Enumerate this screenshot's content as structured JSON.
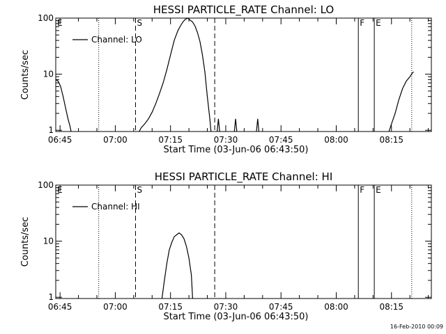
{
  "chart_data": [
    {
      "type": "line",
      "title": "HESSI PARTICLE_RATE Channel: LO",
      "ylabel": "Counts/sec",
      "xlabel": "Start Time (03-Jun-06 06:43:50)",
      "yscale": "log",
      "ylim": [
        0.95,
        100
      ],
      "xlim": [
        "06:43:50",
        "08:25:50"
      ],
      "x_tick_labels": [
        "06:45",
        "07:00",
        "07:15",
        "07:30",
        "07:45",
        "08:00",
        "08:15"
      ],
      "y_tick_labels": [
        "1",
        "10",
        "100"
      ],
      "legend": {
        "entries": [
          "Channel: LO"
        ],
        "placement": "upper-left"
      },
      "series": [
        {
          "name": "Channel: LO",
          "points": [
            [
              "06:43:50",
              8.0
            ],
            [
              "06:44:30",
              7.5
            ],
            [
              "06:45:10",
              6.0
            ],
            [
              "06:45:50",
              4.0
            ],
            [
              "06:46:30",
              2.5
            ],
            [
              "06:47:10",
              1.6
            ],
            [
              "06:47:40",
              1.2
            ],
            [
              "06:48:00",
              0.95
            ],
            null,
            [
              "07:06:30",
              0.95
            ],
            [
              "07:07:00",
              1.1
            ],
            [
              "07:08:00",
              1.3
            ],
            [
              "07:09:00",
              1.6
            ],
            [
              "07:10:00",
              2.1
            ],
            [
              "07:11:00",
              3.0
            ],
            [
              "07:12:00",
              4.5
            ],
            [
              "07:13:00",
              7.0
            ],
            [
              "07:14:00",
              12.0
            ],
            [
              "07:15:00",
              22.0
            ],
            [
              "07:16:00",
              40.0
            ],
            [
              "07:17:00",
              60.0
            ],
            [
              "07:17:40",
              72.0
            ],
            [
              "07:18:20",
              85.0
            ],
            [
              "07:19:00",
              95.0
            ],
            [
              "07:19:40",
              100.0
            ],
            [
              "07:20:20",
              92.0
            ],
            [
              "07:21:00",
              85.0
            ],
            [
              "07:21:40",
              72.0
            ],
            [
              "07:22:20",
              55.0
            ],
            [
              "07:23:00",
              38.0
            ],
            [
              "07:23:40",
              22.0
            ],
            [
              "07:24:20",
              11.0
            ],
            [
              "07:25:00",
              4.0
            ],
            [
              "07:25:40",
              1.6
            ],
            [
              "07:26:00",
              0.95
            ],
            null,
            [
              "07:27:40",
              0.95
            ],
            [
              "07:28:00",
              1.6
            ],
            [
              "07:28:20",
              0.95
            ],
            null,
            [
              "07:32:20",
              0.95
            ],
            [
              "07:32:40",
              1.6
            ],
            [
              "07:33:00",
              0.95
            ],
            null,
            [
              "07:38:20",
              0.95
            ],
            [
              "07:38:40",
              1.6
            ],
            [
              "07:39:00",
              0.95
            ],
            null,
            [
              "08:14:20",
              0.95
            ],
            [
              "08:15:00",
              1.3
            ],
            [
              "08:16:00",
              2.0
            ],
            [
              "08:17:00",
              3.5
            ],
            [
              "08:18:00",
              5.5
            ],
            [
              "08:19:00",
              7.5
            ],
            [
              "08:20:00",
              9.0
            ],
            [
              "08:20:40",
              10.5
            ],
            [
              "08:21:00",
              11.0
            ]
          ]
        }
      ],
      "annotations": [
        {
          "label": "E",
          "time": "06:43:50",
          "style": "none"
        },
        {
          "label": "",
          "time": "06:55:30",
          "style": "dotted"
        },
        {
          "label": "S",
          "time": "07:05:30",
          "style": "dashed"
        },
        {
          "label": "",
          "time": "07:27:00",
          "style": "dashed"
        },
        {
          "label": "F",
          "time": "08:06:00",
          "style": "solid"
        },
        {
          "label": "E",
          "time": "08:10:20",
          "style": "solid"
        },
        {
          "label": "",
          "time": "08:20:30",
          "style": "dotted"
        }
      ]
    },
    {
      "type": "line",
      "title": "HESSI PARTICLE_RATE Channel: HI",
      "ylabel": "Counts/sec",
      "xlabel": "Start Time (03-Jun-06 06:43:50)",
      "yscale": "log",
      "ylim": [
        0.95,
        100
      ],
      "xlim": [
        "06:43:50",
        "08:25:50"
      ],
      "x_tick_labels": [
        "06:45",
        "07:00",
        "07:15",
        "07:30",
        "07:45",
        "08:00",
        "08:15"
      ],
      "y_tick_labels": [
        "1",
        "10",
        "100"
      ],
      "legend": {
        "entries": [
          "Channel: HI"
        ],
        "placement": "upper-left"
      },
      "series": [
        {
          "name": "Channel: HI",
          "points": [
            [
              "07:12:40",
              0.95
            ],
            [
              "07:13:20",
              2.0
            ],
            [
              "07:14:00",
              4.0
            ],
            [
              "07:14:40",
              7.0
            ],
            [
              "07:15:20",
              9.5
            ],
            [
              "07:16:00",
              12.0
            ],
            [
              "07:16:40",
              13.0
            ],
            [
              "07:17:20",
              14.0
            ],
            [
              "07:18:00",
              13.0
            ],
            [
              "07:18:40",
              11.0
            ],
            [
              "07:19:20",
              8.0
            ],
            [
              "07:20:00",
              5.0
            ],
            [
              "07:20:40",
              2.5
            ],
            [
              "07:21:00",
              0.95
            ]
          ]
        }
      ],
      "annotations": [
        {
          "label": "E",
          "time": "06:43:50",
          "style": "none"
        },
        {
          "label": "",
          "time": "06:55:30",
          "style": "dotted"
        },
        {
          "label": "S",
          "time": "07:05:30",
          "style": "dashed"
        },
        {
          "label": "",
          "time": "07:27:00",
          "style": "dashed"
        },
        {
          "label": "F",
          "time": "08:06:00",
          "style": "solid"
        },
        {
          "label": "E",
          "time": "08:10:20",
          "style": "solid"
        },
        {
          "label": "",
          "time": "08:20:30",
          "style": "dotted"
        }
      ]
    }
  ],
  "footer": {
    "date_stamp": "16-Feb-2010 00:09"
  }
}
